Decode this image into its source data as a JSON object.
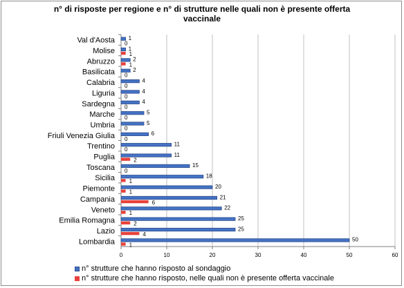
{
  "chart_data": {
    "type": "bar",
    "orientation": "horizontal",
    "title_lines": [
      "n° di risposte per regione e n° di strutture nelle quali non è presente offerta",
      "vaccinale"
    ],
    "categories": [
      "Val d'Aosta",
      "Molise",
      "Abruzzo",
      "Basilicata",
      "Calabria",
      "Liguria",
      "Sardegna",
      "Marche",
      "Umbria",
      "Friuli Venezia Giulia",
      "Trentino",
      "Puglia",
      "Toscana",
      "Sicilia",
      "Piemonte",
      "Campania",
      "Veneto",
      "Emilia Romagna",
      "Lazio",
      "Lombardia"
    ],
    "series": [
      {
        "name": "n° strutture che hanno risposto al sondaggio",
        "color": "#4472c4",
        "values": [
          1,
          1,
          2,
          2,
          4,
          4,
          4,
          5,
          5,
          6,
          11,
          11,
          15,
          18,
          20,
          21,
          22,
          25,
          25,
          50
        ]
      },
      {
        "name": "n° strutture che hanno risposto, nelle quali non è presente offerta vaccinale",
        "color": "#e8413b",
        "values": [
          0,
          1,
          1,
          0,
          0,
          0,
          0,
          0,
          0,
          0,
          0,
          2,
          0,
          1,
          1,
          6,
          1,
          2,
          4,
          1
        ]
      }
    ],
    "xlim": [
      0,
      60
    ],
    "xticks": [
      0,
      10,
      20,
      30,
      40,
      50,
      60
    ],
    "grid": true,
    "legend_position": "bottom-left"
  }
}
